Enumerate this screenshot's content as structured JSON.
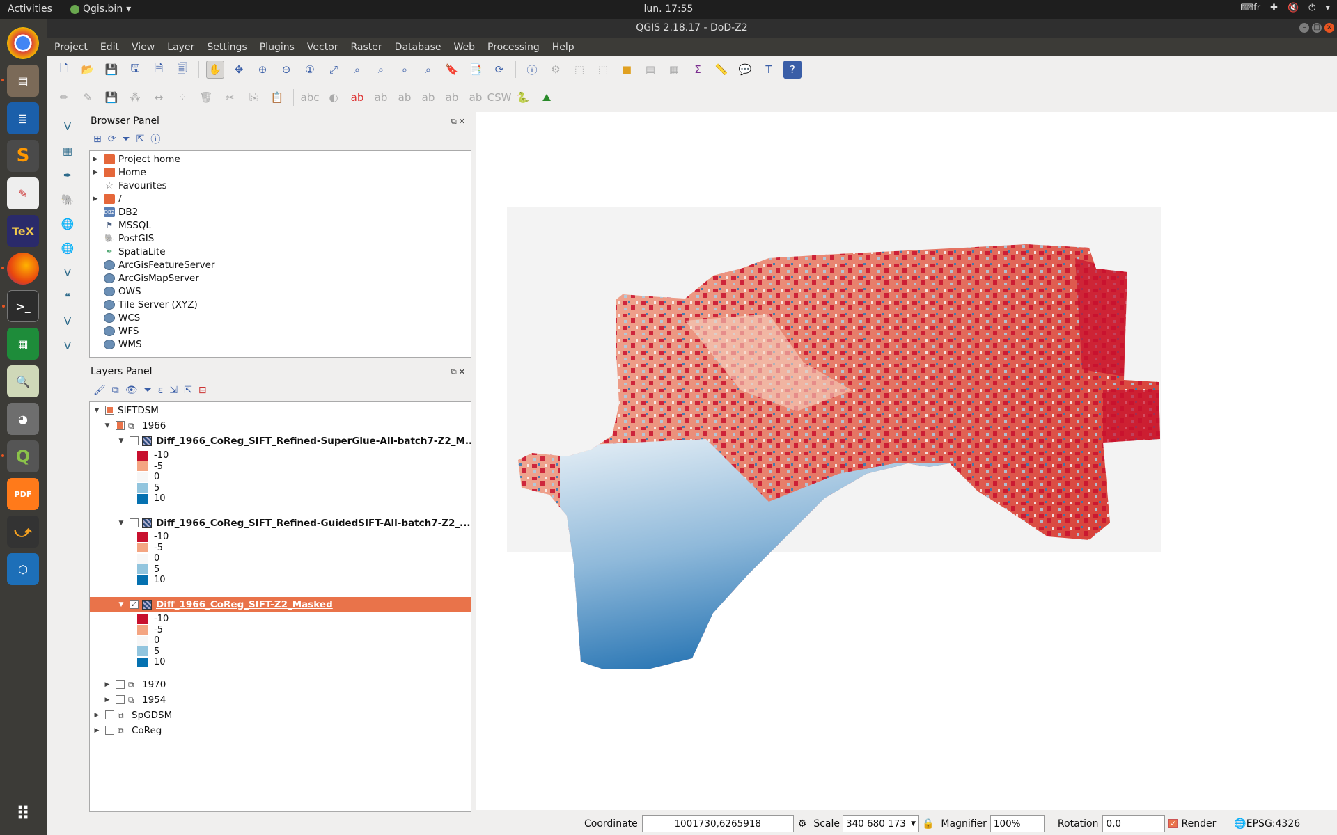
{
  "top_bar": {
    "activities": "Activities",
    "app_name": "Qgis.bin",
    "clock": "lun. 17:55",
    "keyboard": "fr"
  },
  "window": {
    "title": "QGIS 2.18.17 - DoD-Z2"
  },
  "menu": [
    "Project",
    "Edit",
    "View",
    "Layer",
    "Settings",
    "Plugins",
    "Vector",
    "Raster",
    "Database",
    "Web",
    "Processing",
    "Help"
  ],
  "dock_icons": [
    "chrome-icon",
    "files-icon",
    "writer-icon",
    "sublime-icon",
    "text-editor-icon",
    "texmaker-icon",
    "firefox-icon",
    "terminal-icon",
    "calc-icon",
    "viewer-icon",
    "gimp-icon",
    "qgis-icon",
    "pdf-icon",
    "blender-icon",
    "virtualbox-icon",
    "apps-grid-icon"
  ],
  "browser": {
    "title": "Browser Panel",
    "items": [
      {
        "label": "Project home",
        "expandable": true,
        "icon": "folder-icon"
      },
      {
        "label": "Home",
        "expandable": true,
        "icon": "folder-icon"
      },
      {
        "label": "Favourites",
        "expandable": false,
        "icon": "star-icon"
      },
      {
        "label": "/",
        "expandable": true,
        "icon": "folder-icon"
      },
      {
        "label": "DB2",
        "expandable": false,
        "icon": "db2-icon"
      },
      {
        "label": "MSSQL",
        "expandable": false,
        "icon": "mssql-icon"
      },
      {
        "label": "PostGIS",
        "expandable": false,
        "icon": "postgis-icon"
      },
      {
        "label": "SpatiaLite",
        "expandable": false,
        "icon": "spatialite-icon"
      },
      {
        "label": "ArcGisFeatureServer",
        "expandable": false,
        "icon": "globe-icon"
      },
      {
        "label": "ArcGisMapServer",
        "expandable": false,
        "icon": "globe-icon"
      },
      {
        "label": "OWS",
        "expandable": false,
        "icon": "globe-icon"
      },
      {
        "label": "Tile Server (XYZ)",
        "expandable": false,
        "icon": "globe-icon"
      },
      {
        "label": "WCS",
        "expandable": false,
        "icon": "globe-icon"
      },
      {
        "label": "WFS",
        "expandable": false,
        "icon": "globe-icon"
      },
      {
        "label": "WMS",
        "expandable": false,
        "icon": "globe-icon"
      }
    ]
  },
  "layers": {
    "title": "Layers Panel",
    "group_siftdsm": "SIFTDSM",
    "group_1966": "1966",
    "layer1": "Diff_1966_CoReg_SIFT_Refined-SuperGlue-All-batch7-Z2_M...",
    "layer2": "Diff_1966_CoReg_SIFT_Refined-GuidedSIFT-All-batch7-Z2_...",
    "layer3": "Diff_1966_CoReg_SIFT-Z2_Masked",
    "legend": [
      {
        "label": "-10",
        "color": "#c8102e"
      },
      {
        "label": "-5",
        "color": "#f4a582"
      },
      {
        "label": "0",
        "color": "#f7f7f7"
      },
      {
        "label": "5",
        "color": "#92c5de"
      },
      {
        "label": "10",
        "color": "#0571b0"
      }
    ],
    "group_1970": "1970",
    "group_1954": "1954",
    "group_spgdsm": "SpGDSM",
    "group_coreg": "CoReg"
  },
  "status": {
    "coordinate_label": "Coordinate",
    "coordinate_value": "1001730,6265918",
    "scale_label": "Scale",
    "scale_value": "340 680 173",
    "magnifier_label": "Magnifier",
    "magnifier_value": "100%",
    "rotation_label": "Rotation",
    "rotation_value": "0,0",
    "render_label": "Render",
    "crs": "EPSG:4326"
  }
}
